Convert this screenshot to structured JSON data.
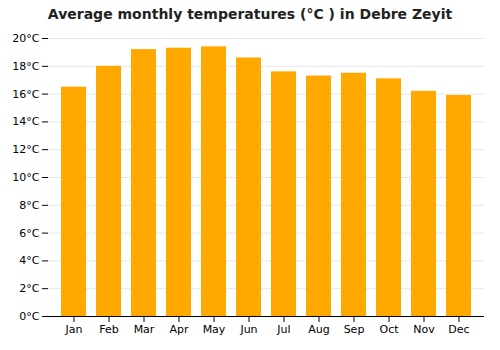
{
  "chart_data": {
    "type": "bar",
    "title": "Average monthly temperatures (°C ) in Debre Zeyit",
    "categories": [
      "Jan",
      "Feb",
      "Mar",
      "Apr",
      "May",
      "Jun",
      "Jul",
      "Aug",
      "Sep",
      "Oct",
      "Nov",
      "Dec"
    ],
    "values": [
      16.5,
      18.0,
      19.2,
      19.3,
      19.4,
      18.6,
      17.6,
      17.3,
      17.5,
      17.1,
      16.2,
      15.9
    ],
    "color": "#FFA800",
    "ylim": [
      0,
      20
    ],
    "yticks": [
      {
        "value": 0,
        "label": "0°C"
      },
      {
        "value": 2,
        "label": "2°C"
      },
      {
        "value": 4,
        "label": "4°C"
      },
      {
        "value": 6,
        "label": "6°C"
      },
      {
        "value": 8,
        "label": "8°C"
      },
      {
        "value": 10,
        "label": "10°C"
      },
      {
        "value": 12,
        "label": "12°C"
      },
      {
        "value": 14,
        "label": "14°C"
      },
      {
        "value": 16,
        "label": "16°C"
      },
      {
        "value": 18,
        "label": "18°C"
      },
      {
        "value": 20,
        "label": "20°C"
      }
    ],
    "grid": true
  }
}
